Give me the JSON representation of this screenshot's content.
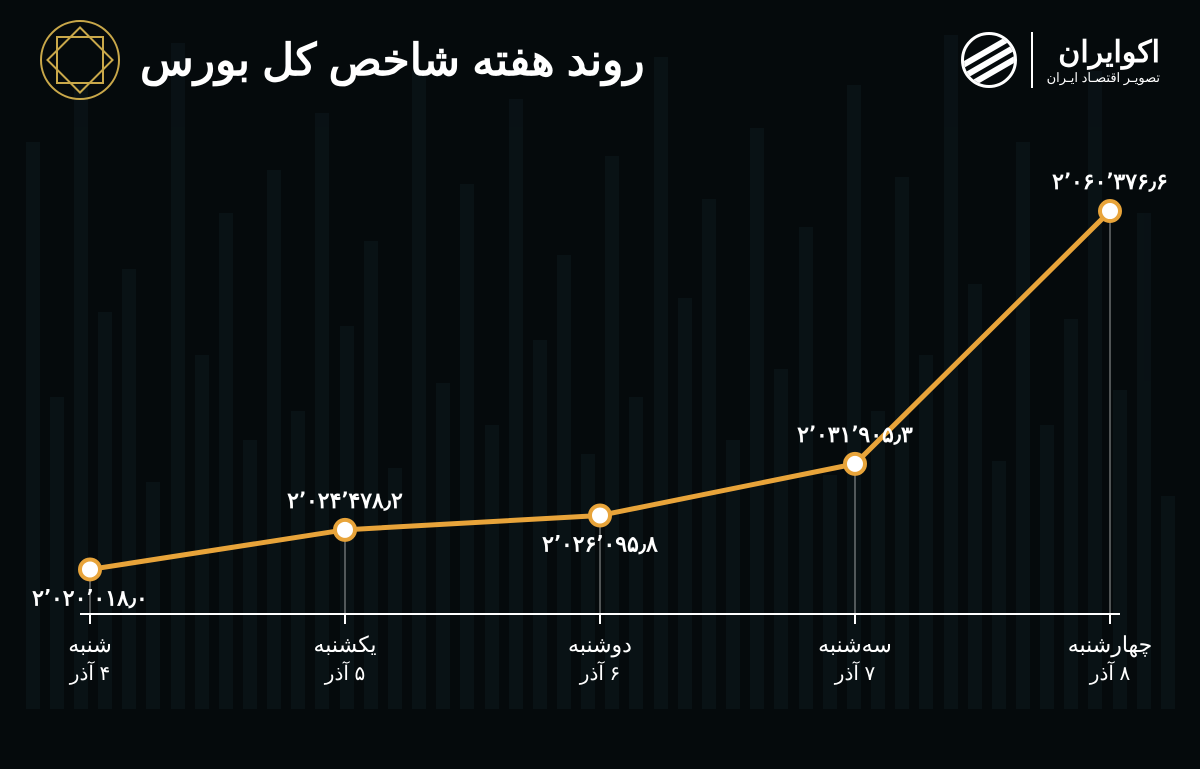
{
  "title": "روند هفته شاخص کل بورس",
  "brand": {
    "name": "اکوایران",
    "tagline": "تصویـر اقتصـاد ایـران"
  },
  "chart": {
    "type": "line",
    "background_color": "#050a0c",
    "line_color": "#e8a43a",
    "line_width": 5,
    "marker_outer_color": "#e8a43a",
    "marker_inner_color": "#ffffff",
    "marker_radius": 10,
    "axis_color": "#ffffff",
    "text_color": "#ffffff",
    "label_fontsize": 22,
    "ymin": 2015000,
    "ymax": 2065000,
    "points": [
      {
        "day": "شنبه",
        "date": "۴ آذر",
        "value": 2020018.0,
        "label": "۲٬۰۲۰٬۰۱۸٫۰",
        "label_pos": "below"
      },
      {
        "day": "یکشنبه",
        "date": "۵ آذر",
        "value": 2024478.2,
        "label": "۲٬۰۲۴٬۴۷۸٫۲",
        "label_pos": "above"
      },
      {
        "day": "دوشنبه",
        "date": "۶ آذر",
        "value": 2026095.8,
        "label": "۲٬۰۲۶٬۰۹۵٫۸",
        "label_pos": "below"
      },
      {
        "day": "سه‌شنبه",
        "date": "۷ آذر",
        "value": 2031905.3,
        "label": "۲٬۰۳۱٬۹۰۵٫۳",
        "label_pos": "above"
      },
      {
        "day": "چهارشنبه",
        "date": "۸ آذر",
        "value": 2060376.6,
        "label": "۲٬۰۶۰٬۳۷۶٫۶",
        "label_pos": "above"
      }
    ],
    "bg_bars": [
      30,
      70,
      45,
      90,
      55,
      40,
      80,
      35,
      60,
      95,
      50,
      75,
      42,
      88,
      33,
      68,
      48,
      82,
      38,
      72,
      58,
      92,
      44,
      78,
      36,
      64,
      52,
      86,
      40,
      74,
      46,
      90,
      34,
      66,
      54,
      84,
      42,
      76,
      38,
      70,
      50,
      94,
      32,
      62,
      56,
      88,
      44,
      80
    ]
  }
}
